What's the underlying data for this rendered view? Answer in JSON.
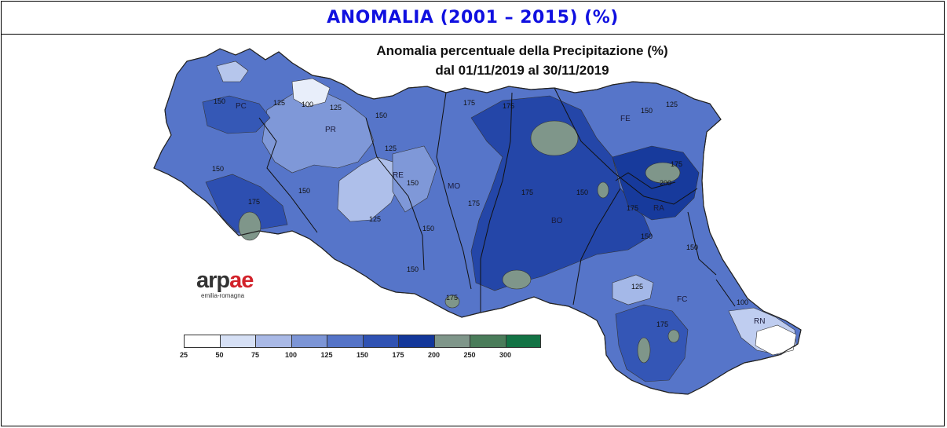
{
  "header": {
    "title": "ANOMALIA (2001 – 2015) (%)"
  },
  "map": {
    "title_line1": "Anomalia percentuale della Precipitazione (%)",
    "title_line2": "dal 01/11/2019 al 30/11/2019",
    "provinces": [
      "PC",
      "PR",
      "RE",
      "MO",
      "BO",
      "FE",
      "RA",
      "FC",
      "RN"
    ],
    "isoline_labels": [
      "150",
      "125",
      "100",
      "125",
      "150",
      "175",
      "175",
      "150",
      "125",
      "150",
      "175",
      "200",
      "175",
      "150",
      "125",
      "150",
      "175",
      "150",
      "125",
      "150",
      "175",
      "175",
      "150",
      "125",
      "150",
      "175",
      "150",
      "175",
      "100"
    ]
  },
  "logo": {
    "main_a": "arp",
    "main_b": "ae",
    "sub": "emilia-romagna"
  },
  "legend": {
    "colors": [
      "#ffffff",
      "#d6e0f5",
      "#a9b9e6",
      "#7c95d6",
      "#5473c7",
      "#2f52b3",
      "#13379a",
      "#7f968a",
      "#4a7c5a",
      "#137345"
    ],
    "labels": [
      "25",
      "50",
      "75",
      "100",
      "125",
      "150",
      "175",
      "200",
      "250",
      "300"
    ]
  }
}
